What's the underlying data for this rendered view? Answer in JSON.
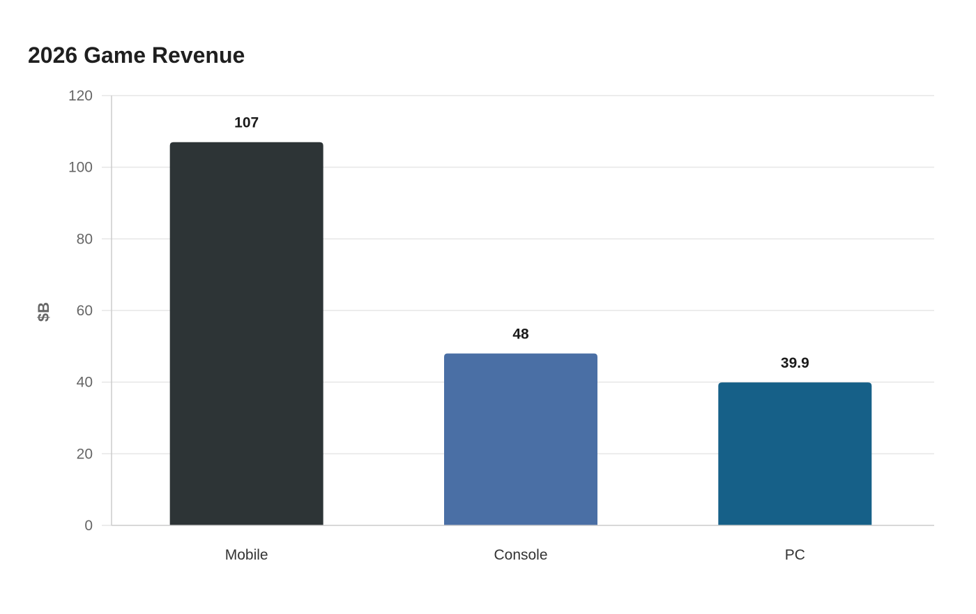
{
  "chart_data": {
    "type": "bar",
    "title": "2026 Game Revenue",
    "xlabel": "",
    "ylabel": "$B",
    "categories": [
      "Mobile",
      "Console",
      "PC"
    ],
    "values": [
      107,
      48,
      39.9
    ],
    "value_labels": [
      "107",
      "48",
      "39.9"
    ],
    "colors": [
      "#2d3436",
      "#4a6fa5",
      "#166088"
    ],
    "ylim": [
      0,
      120
    ],
    "yticks": [
      "0",
      "20",
      "40",
      "60",
      "80",
      "100",
      "120"
    ],
    "grid": true,
    "legend": "none"
  }
}
